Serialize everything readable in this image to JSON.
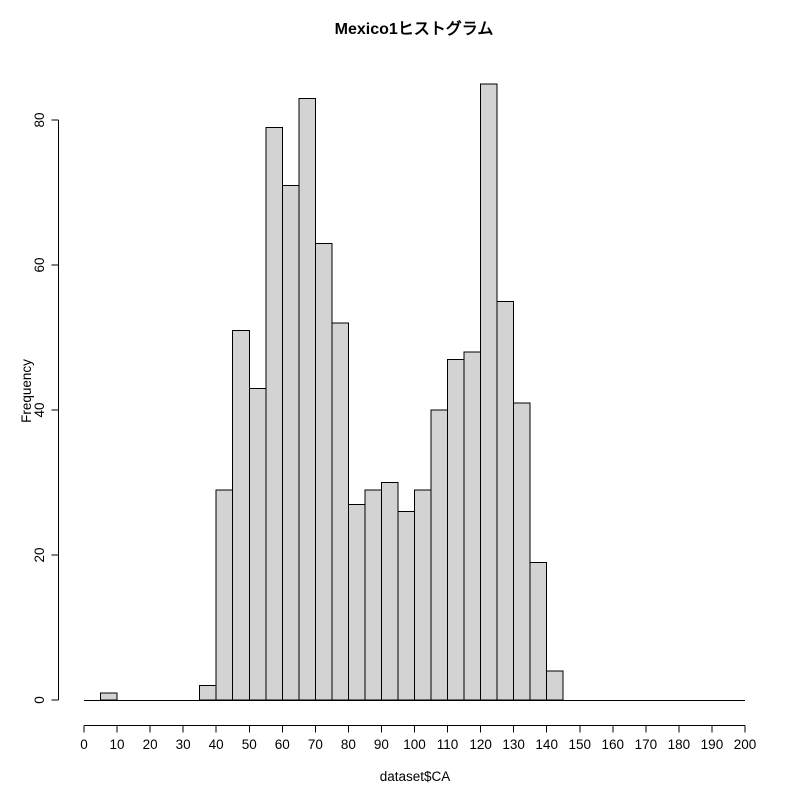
{
  "chart_data": {
    "type": "bar",
    "subtype": "histogram",
    "title": "Mexico1ヒストグラム",
    "xlabel": "dataset$CA",
    "ylabel": "Frequency",
    "xlim": [
      0,
      200
    ],
    "ylim": [
      0,
      85
    ],
    "bin_start": 0,
    "bin_width": 5,
    "counts": [
      0,
      1,
      0,
      0,
      0,
      0,
      0,
      2,
      29,
      51,
      43,
      79,
      71,
      83,
      63,
      52,
      27,
      29,
      30,
      26,
      29,
      40,
      47,
      48,
      85,
      55,
      41,
      19,
      4,
      0,
      0,
      0,
      0,
      0,
      0,
      0,
      0,
      0,
      0,
      0
    ],
    "x_ticks": [
      0,
      10,
      20,
      30,
      40,
      50,
      60,
      70,
      80,
      90,
      100,
      110,
      120,
      130,
      140,
      150,
      160,
      170,
      180,
      190,
      200
    ],
    "y_ticks": [
      0,
      20,
      40,
      60,
      80
    ],
    "grid": false,
    "legend": "none",
    "colors": {
      "bar_fill": "#d3d3d3",
      "bar_stroke": "#000000",
      "axis": "#000000",
      "text": "#000000",
      "background": "#ffffff"
    }
  }
}
